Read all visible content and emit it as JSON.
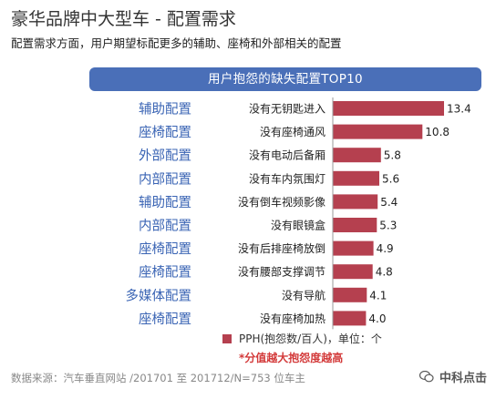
{
  "title": "豪华品牌中大型车 - 配置需求",
  "subtitle": "配置需求方面，用户期望标配更多的辅助、座椅和外部相关的配置",
  "banner": "用户抱怨的缺失配置TOP10",
  "legend_label": "PPH(抱怨数/百人)，单位：个",
  "note": "*分值越大抱怨度越高",
  "footer": "数据来源：汽车垂直网站 /201701 至 201712/N=753 位车主",
  "watermark": "中科点击",
  "colors": {
    "bar": "#b5404f",
    "banner": "#4a6fb8",
    "category": "#3a64b4"
  },
  "chart_data": {
    "type": "bar",
    "orientation": "horizontal",
    "categories": [
      "没有无钥匙进入",
      "没有座椅通风",
      "没有电动后备厢",
      "没有车内氛围灯",
      "没有倒车视频影像",
      "没有眼镜盒",
      "没有后排座椅放倒",
      "没有腰部支撑调节",
      "没有导航",
      "没有座椅加热"
    ],
    "groups": [
      "辅助配置",
      "座椅配置",
      "外部配置",
      "内部配置",
      "辅助配置",
      "内部配置",
      "座椅配置",
      "座椅配置",
      "多媒体配置",
      "座椅配置"
    ],
    "values": [
      13.4,
      10.8,
      5.8,
      5.6,
      5.4,
      5.3,
      4.9,
      4.8,
      4.1,
      4.0
    ],
    "title": "用户抱怨的缺失配置TOP10",
    "xlabel": "",
    "ylabel": "",
    "xlim": [
      0,
      13.4
    ],
    "grid": false,
    "legend_position": "bottom"
  }
}
